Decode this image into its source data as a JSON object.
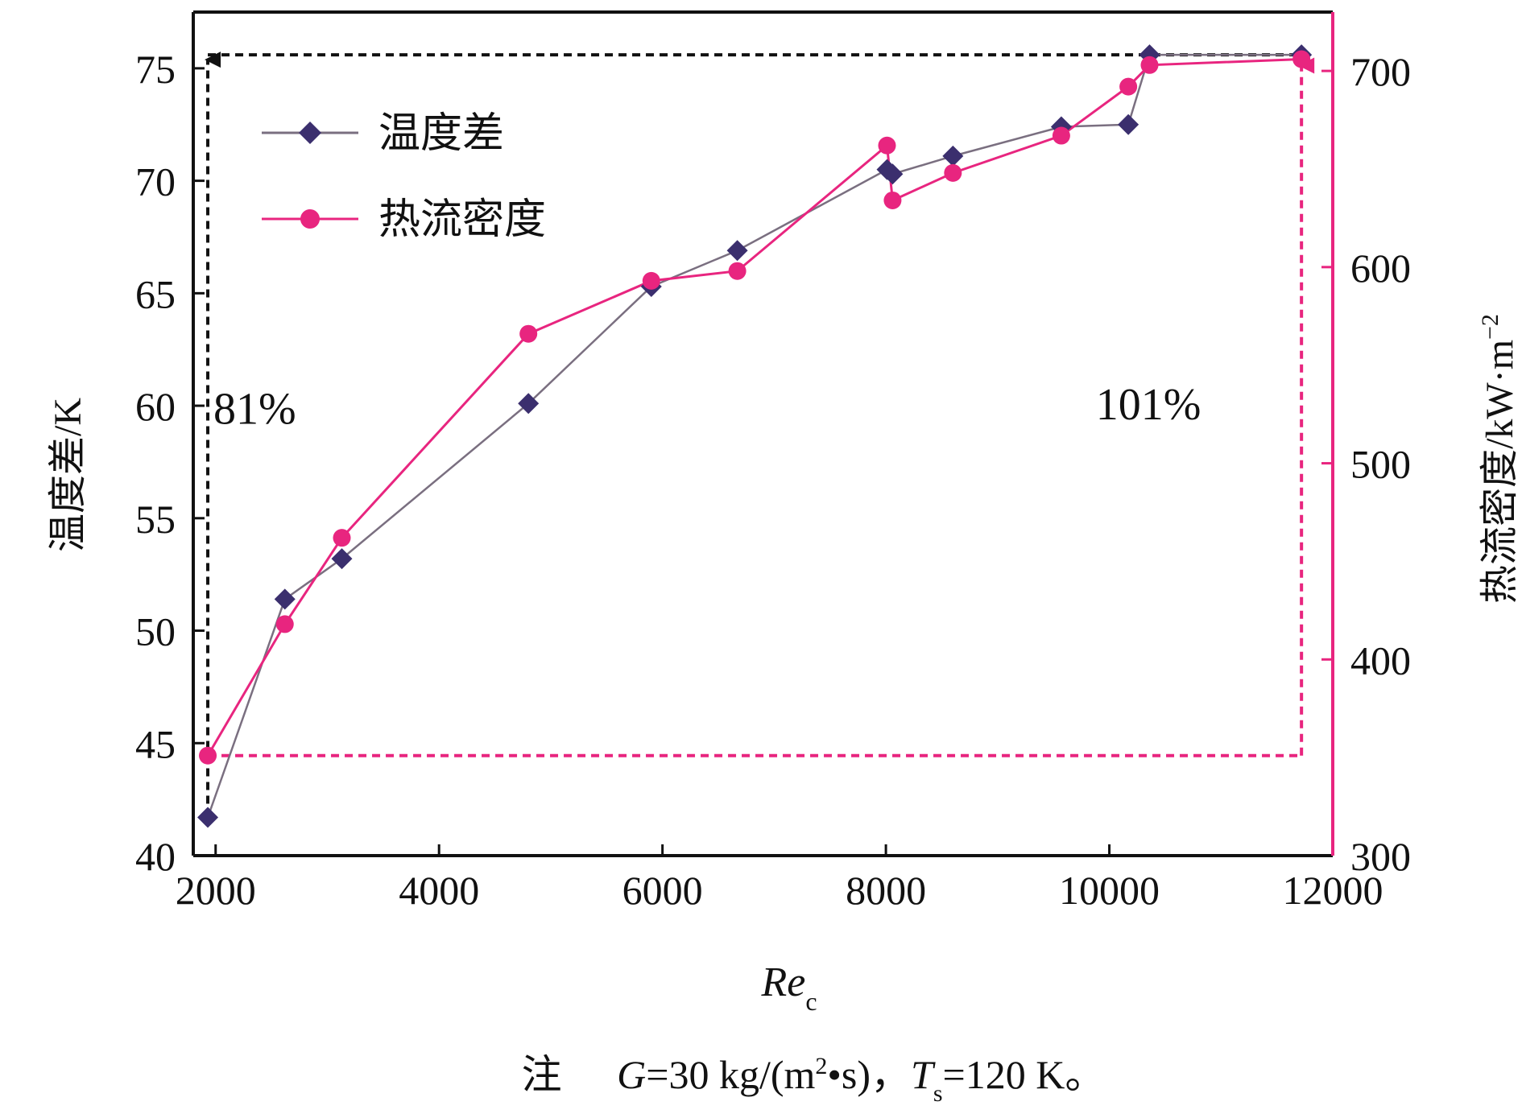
{
  "chart_data": {
    "type": "line",
    "xlabel": "Re",
    "xlabel_sub": "c",
    "xlim": [
      1800,
      12000
    ],
    "xticks": [
      2000,
      4000,
      6000,
      8000,
      10000,
      12000
    ],
    "y_left": {
      "label": "温度差/K",
      "lim": [
        40,
        77.5
      ],
      "ticks": [
        40,
        45,
        50,
        55,
        60,
        65,
        70,
        75
      ]
    },
    "y_right": {
      "label": "热流密度/kW·m",
      "label_sup": "−2",
      "lim": [
        300,
        730
      ],
      "ticks": [
        300,
        400,
        500,
        600,
        700
      ]
    },
    "legend_position": "top-left",
    "series": [
      {
        "name": "温度差",
        "axis": "left",
        "marker": "diamond",
        "color": "#7a6f80",
        "marker_color": "#3b2f6e",
        "x": [
          1930,
          2620,
          3130,
          4800,
          5900,
          6670,
          8010,
          8060,
          8600,
          9570,
          10170,
          10360,
          11720
        ],
        "y": [
          41.7,
          51.4,
          53.2,
          60.1,
          65.3,
          66.9,
          70.5,
          70.3,
          71.1,
          72.4,
          72.5,
          75.6,
          75.6
        ]
      },
      {
        "name": "热流密度",
        "axis": "right",
        "marker": "circle",
        "color": "#e8257f",
        "marker_color": "#e8257f",
        "x": [
          1930,
          2620,
          3130,
          4800,
          5900,
          6670,
          8010,
          8060,
          8600,
          9570,
          10170,
          10360,
          11720
        ],
        "y": [
          351,
          418,
          462,
          566,
          593,
          598,
          662,
          634,
          648,
          667,
          692,
          703,
          706
        ]
      }
    ],
    "reference_lines": [
      {
        "color": "#111111",
        "axis": "left",
        "x": 1930,
        "y_from": 41.7,
        "y_to": 75.6,
        "x_to": 11720
      },
      {
        "color": "#e8257f",
        "axis": "right",
        "x_from": 1930,
        "x": 11720,
        "y_from": 351,
        "y_to": 706
      }
    ],
    "annotations": [
      {
        "text": "81%",
        "x": 2350,
        "y": 59.2,
        "axis": "left"
      },
      {
        "text": "101%",
        "x": 10350,
        "y": 59.4,
        "axis": "left"
      }
    ],
    "note": {
      "prefix": "注",
      "g_symbol": "G",
      "g_value": "=30 kg/(m",
      "g_sup": "2",
      "g_tail": "•s)，",
      "t_symbol": "T",
      "t_sub": "s",
      "t_value": "=120 K。"
    },
    "colors": {
      "axis_right": "#e8257f",
      "axis_left": "#111111"
    }
  }
}
